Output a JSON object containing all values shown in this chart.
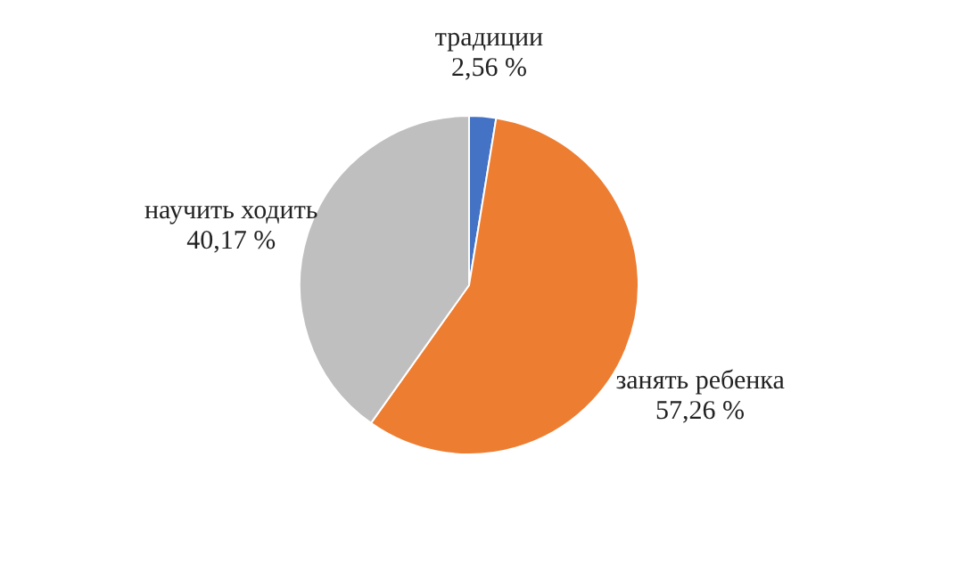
{
  "chart_data": {
    "type": "pie",
    "categories": [
      "традиции",
      "занять ребенка",
      "научить ходить"
    ],
    "values": [
      2.56,
      57.26,
      40.17
    ],
    "value_labels": [
      "2,56 %",
      "57,26 %",
      "40,17 %"
    ],
    "colors": [
      "#4472c4",
      "#ed7d31",
      "#bfbfbf"
    ]
  }
}
